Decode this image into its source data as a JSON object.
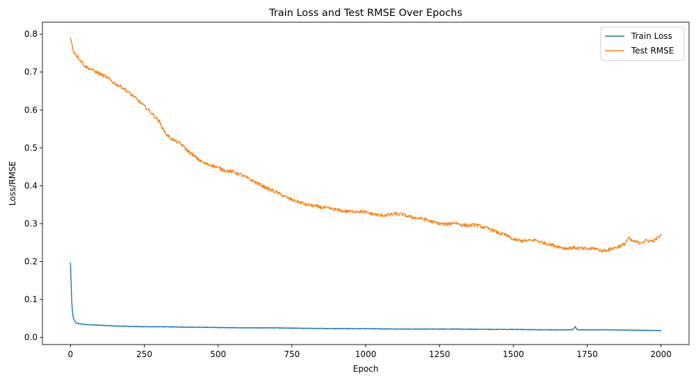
{
  "chart_data": {
    "type": "line",
    "title": "Train Loss and Test RMSE Over Epochs",
    "xlabel": "Epoch",
    "ylabel": "Loss/RMSE",
    "xlim": [
      -95,
      2095
    ],
    "ylim": [
      -0.019,
      0.8315
    ],
    "xticks": [
      0,
      250,
      500,
      750,
      1000,
      1250,
      1500,
      1750,
      2000
    ],
    "yticks": [
      0.0,
      0.1,
      0.2,
      0.3,
      0.4,
      0.5,
      0.6,
      0.7,
      0.8
    ],
    "grid": false,
    "legend": {
      "position": "top-right"
    },
    "series": [
      {
        "name": "Train Loss",
        "color": "#1f77b4",
        "x": [
          0,
          2,
          4,
          6,
          8,
          10,
          15,
          20,
          30,
          40,
          50,
          75,
          100,
          150,
          200,
          250,
          300,
          400,
          500,
          600,
          700,
          800,
          900,
          1000,
          1100,
          1200,
          1300,
          1400,
          1500,
          1600,
          1700,
          1710,
          1715,
          1720,
          1800,
          1900,
          2000
        ],
        "values": [
          0.196,
          0.15,
          0.1,
          0.075,
          0.06,
          0.05,
          0.042,
          0.038,
          0.036,
          0.035,
          0.034,
          0.033,
          0.032,
          0.03,
          0.029,
          0.028,
          0.028,
          0.027,
          0.026,
          0.025,
          0.025,
          0.024,
          0.023,
          0.023,
          0.022,
          0.022,
          0.022,
          0.021,
          0.021,
          0.02,
          0.02,
          0.028,
          0.021,
          0.02,
          0.02,
          0.019,
          0.018
        ]
      },
      {
        "name": "Test RMSE",
        "color": "#ff7f0e",
        "x": [
          0,
          10,
          25,
          50,
          75,
          100,
          125,
          150,
          175,
          200,
          225,
          250,
          275,
          300,
          325,
          350,
          375,
          400,
          425,
          450,
          475,
          500,
          525,
          550,
          575,
          600,
          625,
          650,
          675,
          700,
          725,
          750,
          775,
          800,
          825,
          850,
          875,
          900,
          925,
          950,
          975,
          1000,
          1025,
          1050,
          1075,
          1100,
          1125,
          1150,
          1175,
          1200,
          1225,
          1250,
          1275,
          1300,
          1325,
          1350,
          1375,
          1400,
          1425,
          1450,
          1475,
          1500,
          1525,
          1550,
          1575,
          1600,
          1625,
          1650,
          1675,
          1700,
          1725,
          1750,
          1775,
          1800,
          1825,
          1850,
          1875,
          1890,
          1900,
          1925,
          1950,
          1975,
          2000
        ],
        "values": [
          0.79,
          0.755,
          0.74,
          0.715,
          0.705,
          0.695,
          0.685,
          0.67,
          0.66,
          0.645,
          0.628,
          0.61,
          0.592,
          0.57,
          0.535,
          0.52,
          0.51,
          0.49,
          0.475,
          0.46,
          0.455,
          0.448,
          0.44,
          0.437,
          0.43,
          0.42,
          0.41,
          0.4,
          0.39,
          0.382,
          0.372,
          0.363,
          0.357,
          0.35,
          0.347,
          0.343,
          0.34,
          0.337,
          0.333,
          0.332,
          0.333,
          0.33,
          0.325,
          0.322,
          0.323,
          0.326,
          0.324,
          0.318,
          0.315,
          0.312,
          0.305,
          0.3,
          0.298,
          0.303,
          0.297,
          0.295,
          0.297,
          0.29,
          0.285,
          0.275,
          0.27,
          0.258,
          0.255,
          0.255,
          0.257,
          0.25,
          0.245,
          0.24,
          0.235,
          0.237,
          0.235,
          0.233,
          0.235,
          0.228,
          0.232,
          0.238,
          0.245,
          0.262,
          0.255,
          0.25,
          0.255,
          0.255,
          0.268
        ]
      }
    ]
  }
}
